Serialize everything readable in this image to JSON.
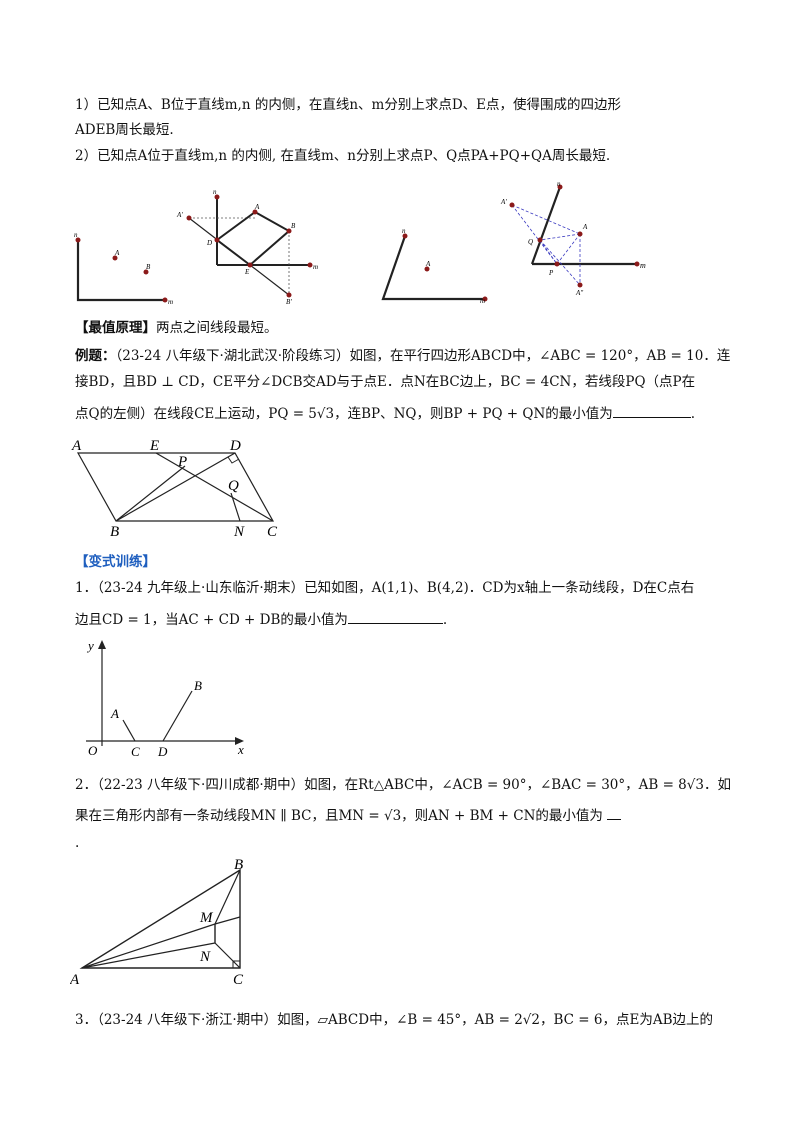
{
  "intro": {
    "line1": "1）已知点A、B位于直线m,n 的内侧，在直线n、m分别上求点D、E点，使得围成的四边形",
    "line2": "ADEB周长最短.",
    "line3": "2）已知点A位于直线m,n 的内侧, 在直线m、n分别上求点P、Q点PA+PQ+QA周长最短."
  },
  "fig1": {
    "n": "n",
    "m": "m",
    "A": "A",
    "B": "B"
  },
  "fig2": {
    "n": "n",
    "m": "m",
    "A1": "A′",
    "A": "A",
    "B": "B",
    "D": "D",
    "E": "E",
    "B1": "B′"
  },
  "fig3": {
    "n": "n",
    "m": "m",
    "A": "A"
  },
  "fig4": {
    "n": "n",
    "m": "m",
    "A1": "A′",
    "A": "A",
    "Q": "Q",
    "P": "P",
    "A2": "A″"
  },
  "principle": {
    "label": "【最值原理】",
    "text": "两点之间线段最短。"
  },
  "example": {
    "label": "例题：",
    "line1": "（23-24 八年级下·湖北武汉·阶段练习）如图，在平行四边形ABCD中，∠ABC = 120°，AB = 10．连",
    "line2": "接BD，且BD ⊥ CD，CE平分∠DCB交AD与于点E．点N在BC边上，BC = 4CN，若线段PQ（点P在",
    "line3": "点Q的左侧）在线段CE上运动，PQ = 5√3，连BP、NQ，则BP + PQ + QN的最小值为",
    "line3_end": "."
  },
  "fig_example": {
    "A": "A",
    "E": "E",
    "D": "D",
    "P": "P",
    "Q": "Q",
    "B": "B",
    "N": "N",
    "C": "C"
  },
  "variant": {
    "heading": "【变式训练】"
  },
  "q1": {
    "line1": "1．（23-24 九年级上·山东临沂·期末）已知如图，A(1,1)、B(4,2)．CD为x轴上一条动线段，D在C点右",
    "line2": "边且CD = 1，当AC + CD + DB的最小值为",
    "line2_end": "."
  },
  "fig_q1": {
    "y": "y",
    "x": "x",
    "O": "O",
    "A": "A",
    "B": "B",
    "C": "C",
    "D": "D"
  },
  "q2": {
    "line1": "2．（22-23 八年级下·四川成都·期中）如图，在Rt△ABC中，∠ACB = 90°，∠BAC = 30°，AB = 8√3．如",
    "line2": "果在三角形内部有一条动线段MN ∥ BC，且MN = √3，则AN + BM + CN的最小值为",
    "line3": "."
  },
  "fig_q2": {
    "A": "A",
    "B": "B",
    "C": "C",
    "M": "M",
    "N": "N"
  },
  "q3": {
    "line1": "3．（23-24 八年级下·浙江·期中）如图，▱ABCD中，∠B = 45°，AB = 2√2，BC = 6，点E为AB边上的"
  }
}
